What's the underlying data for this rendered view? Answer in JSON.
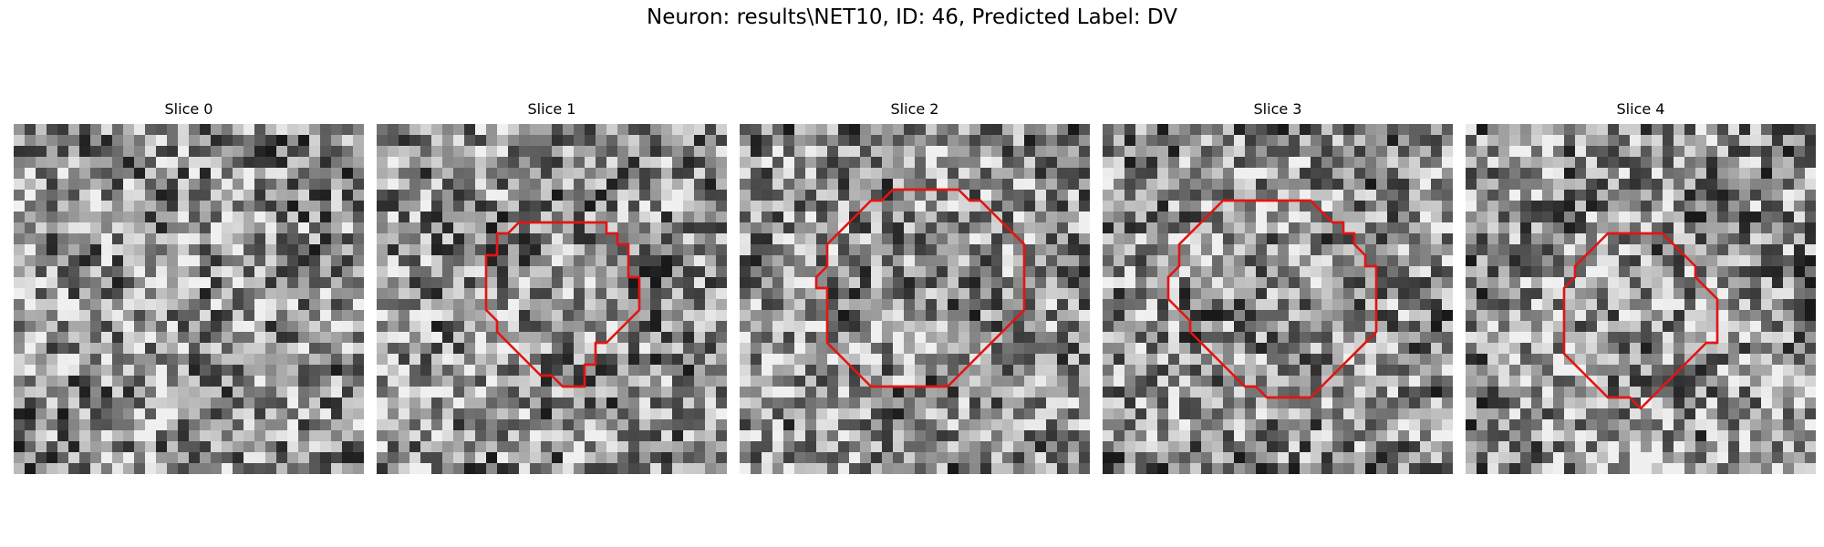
{
  "figure": {
    "title": "Neuron: results\\NET10, ID: 46, Predicted Label: DV"
  },
  "panels": [
    {
      "title": "Slice 0",
      "seed": 11,
      "contour": []
    },
    {
      "title": "Slice 1",
      "seed": 23,
      "contour": [
        [
          15,
          9
        ],
        [
          21,
          9
        ],
        [
          21,
          10
        ],
        [
          22,
          10
        ],
        [
          22,
          11
        ],
        [
          23,
          11
        ],
        [
          23,
          14
        ],
        [
          24,
          14
        ],
        [
          24,
          17
        ],
        [
          21,
          20
        ],
        [
          20,
          20
        ],
        [
          20,
          22
        ],
        [
          19,
          22
        ],
        [
          19,
          24
        ],
        [
          17,
          24
        ],
        [
          16,
          23
        ],
        [
          15,
          23
        ],
        [
          14,
          22
        ],
        [
          13,
          21
        ],
        [
          12,
          20
        ],
        [
          11,
          19
        ],
        [
          11,
          18
        ],
        [
          10,
          17
        ],
        [
          10,
          15
        ],
        [
          10,
          12
        ],
        [
          11,
          12
        ],
        [
          11,
          10
        ],
        [
          12,
          10
        ],
        [
          13,
          9
        ]
      ]
    },
    {
      "title": "Slice 2",
      "seed": 37,
      "contour": [
        [
          15,
          6
        ],
        [
          20,
          6
        ],
        [
          21,
          7
        ],
        [
          22,
          7
        ],
        [
          23,
          8
        ],
        [
          24,
          9
        ],
        [
          25,
          10
        ],
        [
          26,
          11
        ],
        [
          26,
          17
        ],
        [
          24,
          19
        ],
        [
          22,
          21
        ],
        [
          21,
          22
        ],
        [
          19,
          24
        ],
        [
          12,
          24
        ],
        [
          11,
          23
        ],
        [
          10,
          22
        ],
        [
          9,
          21
        ],
        [
          8,
          20
        ],
        [
          8,
          18
        ],
        [
          8,
          15
        ],
        [
          7,
          15
        ],
        [
          7,
          14
        ],
        [
          8,
          13
        ],
        [
          8,
          11
        ],
        [
          9,
          10
        ],
        [
          10,
          9
        ],
        [
          11,
          8
        ],
        [
          12,
          7
        ],
        [
          13,
          7
        ],
        [
          14,
          6
        ]
      ]
    },
    {
      "title": "Slice 3",
      "seed": 53,
      "contour": [
        [
          14,
          7
        ],
        [
          19,
          7
        ],
        [
          20,
          8
        ],
        [
          21,
          9
        ],
        [
          22,
          9
        ],
        [
          22,
          10
        ],
        [
          23,
          10
        ],
        [
          23,
          11
        ],
        [
          24,
          12
        ],
        [
          24,
          13
        ],
        [
          25,
          13
        ],
        [
          25,
          14
        ],
        [
          25,
          19
        ],
        [
          21,
          23
        ],
        [
          20,
          24
        ],
        [
          19,
          25
        ],
        [
          15,
          25
        ],
        [
          14,
          24
        ],
        [
          13,
          24
        ],
        [
          12,
          23
        ],
        [
          11,
          22
        ],
        [
          10,
          21
        ],
        [
          9,
          20
        ],
        [
          8,
          19
        ],
        [
          8,
          18
        ],
        [
          7,
          17
        ],
        [
          6,
          16
        ],
        [
          6,
          14
        ],
        [
          7,
          13
        ],
        [
          7,
          12
        ],
        [
          7,
          11
        ],
        [
          8,
          10
        ],
        [
          9,
          9
        ],
        [
          10,
          8
        ],
        [
          11,
          7
        ]
      ]
    },
    {
      "title": "Slice 4",
      "seed": 71,
      "contour": [
        [
          13,
          10
        ],
        [
          18,
          10
        ],
        [
          19,
          11
        ],
        [
          20,
          12
        ],
        [
          21,
          13
        ],
        [
          21,
          14
        ],
        [
          22,
          15
        ],
        [
          23,
          16
        ],
        [
          23,
          20
        ],
        [
          22,
          20
        ],
        [
          21,
          21
        ],
        [
          20,
          22
        ],
        [
          19,
          23
        ],
        [
          18,
          24
        ],
        [
          17,
          25
        ],
        [
          16,
          26
        ],
        [
          15,
          25
        ],
        [
          13,
          25
        ],
        [
          12,
          24
        ],
        [
          11,
          23
        ],
        [
          10,
          22
        ],
        [
          9,
          21
        ],
        [
          9,
          20
        ],
        [
          9,
          16
        ],
        [
          9,
          15
        ],
        [
          10,
          14
        ],
        [
          10,
          13
        ],
        [
          11,
          12
        ],
        [
          12,
          11
        ]
      ]
    }
  ],
  "colors": {
    "contour": "#e31414"
  }
}
